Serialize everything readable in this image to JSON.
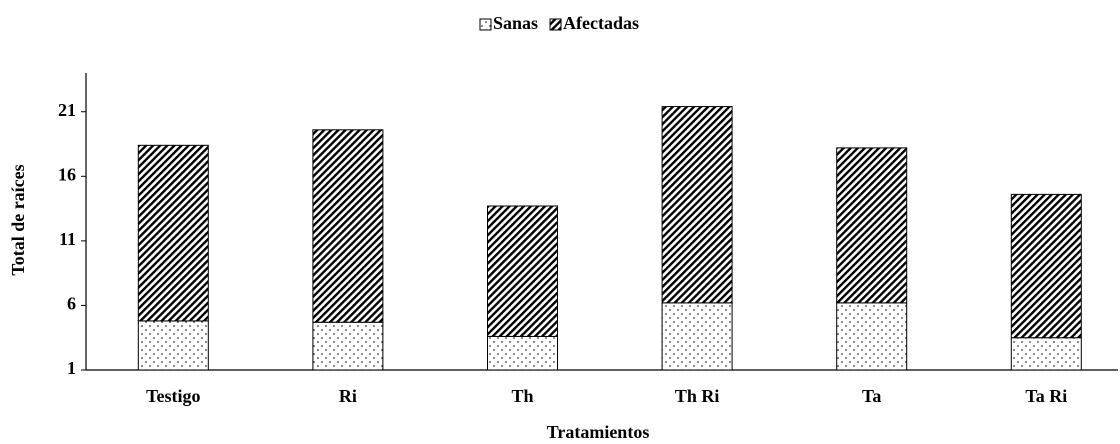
{
  "chart_data": {
    "type": "stacked_bar",
    "categories": [
      "Testigo",
      "Ri",
      "Th",
      "Th Ri",
      "Ta",
      "Ta Ri"
    ],
    "series": [
      {
        "name": "Sanas",
        "color": "#000000",
        "pattern": "dots",
        "values": [
          4.8,
          4.7,
          3.6,
          6.2,
          6.2,
          3.5
        ]
      },
      {
        "name": "Afectadas",
        "color": "#000000",
        "pattern": "hatch",
        "values": [
          13.6,
          14.9,
          10.1,
          15.2,
          12.0,
          11.1
        ]
      }
    ],
    "ylim": [
      1,
      24
    ],
    "yticks": [
      1,
      6,
      11,
      16,
      21
    ],
    "y_label": "Total de raíces",
    "x_label": "Tratamientos",
    "legend": "top",
    "grid": false
  }
}
